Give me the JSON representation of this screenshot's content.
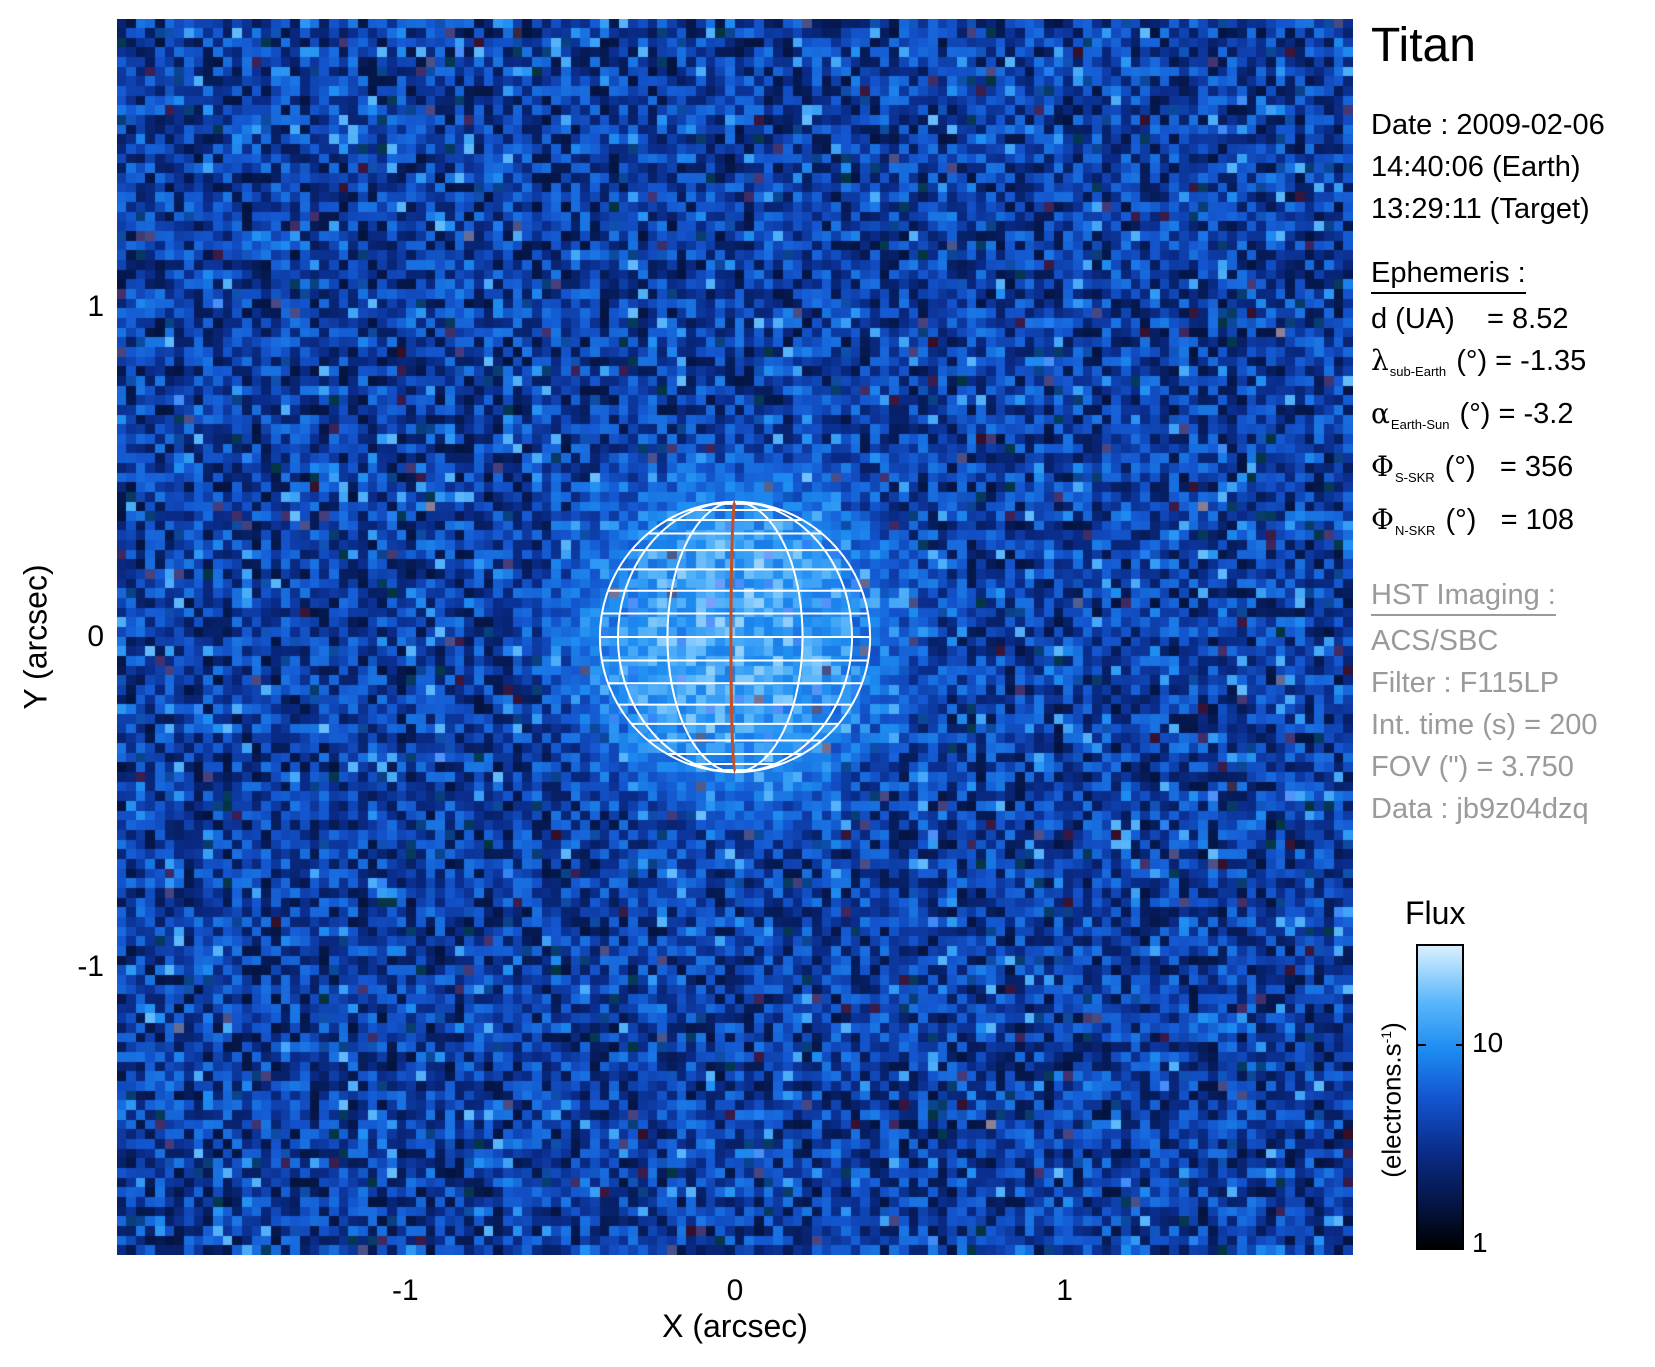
{
  "image": {
    "x_axis": {
      "label": "X (arcsec)",
      "ticks": [
        -1,
        0,
        1
      ],
      "range": [
        -1.875,
        1.875
      ]
    },
    "y_axis": {
      "label": "Y (arcsec)",
      "ticks": [
        1,
        0,
        -1
      ],
      "range": [
        -1.875,
        1.875
      ]
    },
    "disk": {
      "center_x": 0,
      "center_y": 0,
      "radius_arcsec": 0.41,
      "central_meridian_color": "#c0502a",
      "grid_color": "#ffffff"
    },
    "colormap": [
      "#000000",
      "#04123a",
      "#0a2c8a",
      "#1456d0",
      "#1e8df2",
      "#5db8fb",
      "#d8f0ff"
    ]
  },
  "info": {
    "target": "Titan",
    "date": "Date : 2009-02-06",
    "earth_time": "14:40:06 (Earth)",
    "target_time": "13:29:11 (Target)",
    "ephemeris_title": "Ephemeris :",
    "distance": {
      "label": "d (UA)",
      "value": "= 8.52"
    },
    "lambda": {
      "symbol": "λ",
      "sub": "sub-Earth",
      "unit": "(°)",
      "value": "= -1.35"
    },
    "alpha": {
      "symbol": "α",
      "sub": "Earth-Sun",
      "unit": "(°)",
      "value": "= -3.2"
    },
    "phi_s": {
      "symbol": "Φ",
      "sub": "S-SKR",
      "unit": "(°)",
      "value": "= 356"
    },
    "phi_n": {
      "symbol": "Φ",
      "sub": "N-SKR",
      "unit": "(°)",
      "value": "= 108"
    },
    "imaging_title": "HST Imaging :",
    "instrument": "ACS/SBC",
    "filter": "Filter : F115LP",
    "int_time": "Int. time (s) = 200",
    "fov": "FOV (\") = 3.750",
    "data_id": "Data : jb9z04dzq"
  },
  "colorbar": {
    "title": "Flux",
    "unit_main": "(electrons.s",
    "unit_sup": "-1",
    "unit_end": ")",
    "tick_10": "10",
    "tick_1": "1"
  }
}
